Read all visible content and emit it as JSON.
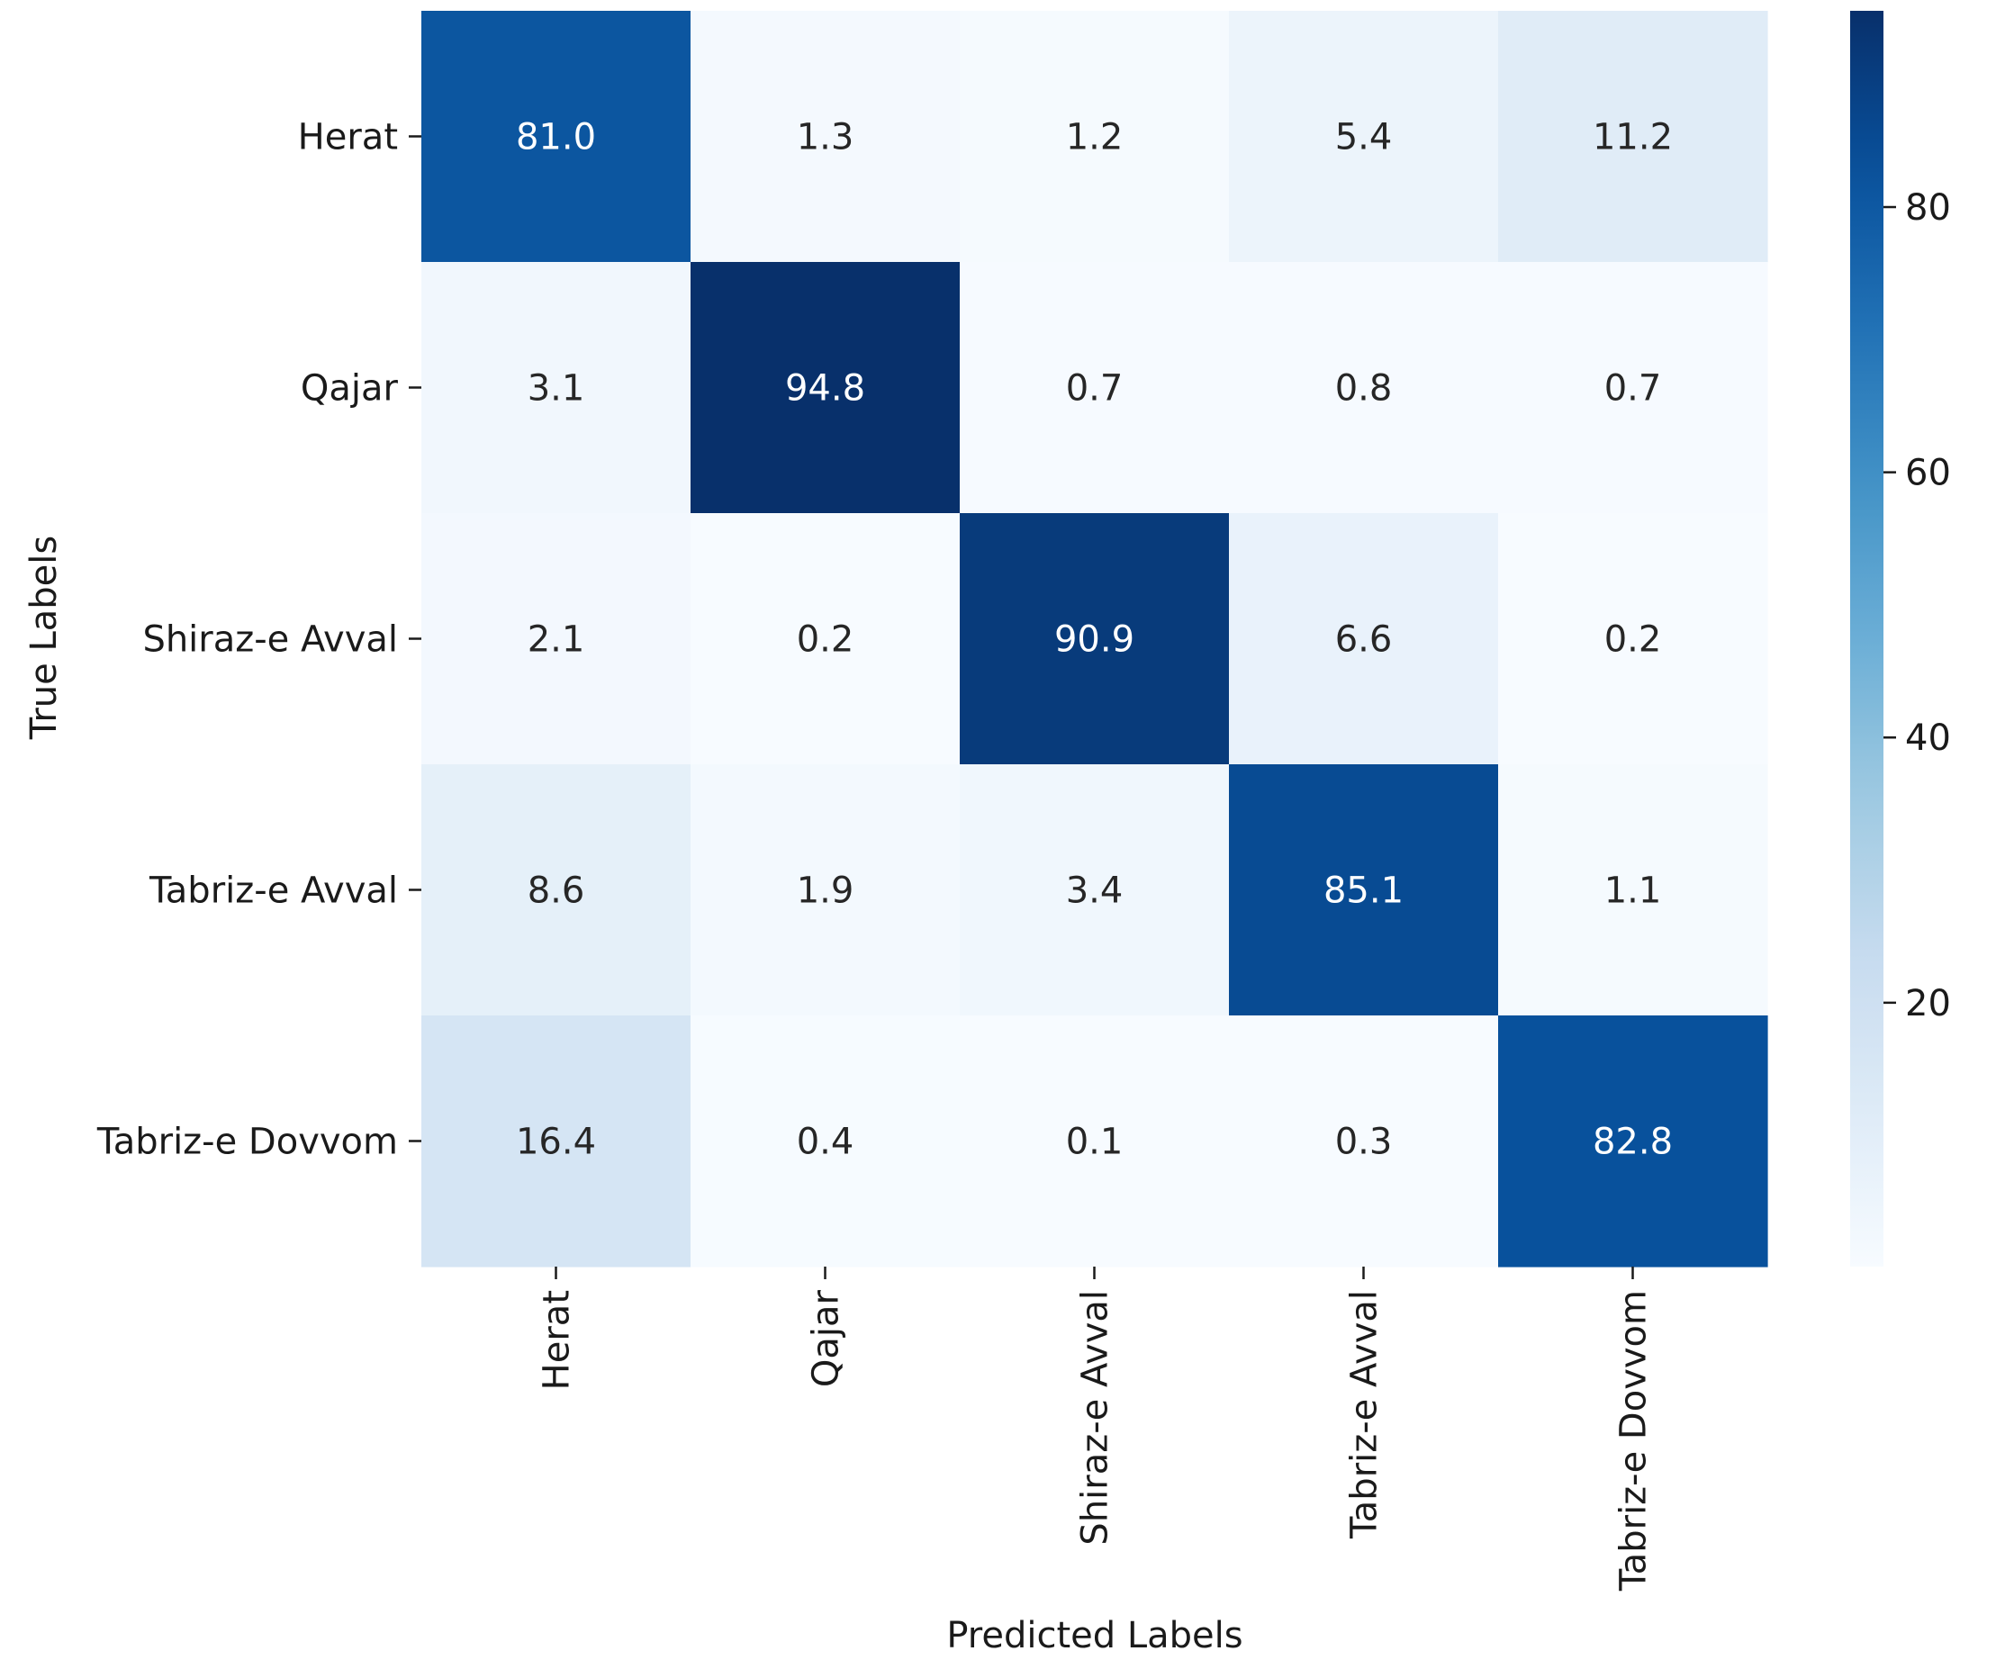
{
  "chart_data": {
    "type": "heatmap",
    "title": "",
    "xlabel": "Predicted Labels",
    "ylabel": "True Labels",
    "x_categories": [
      "Herat",
      "Qajar",
      "Shiraz-e Avval",
      "Tabriz-e Avval",
      "Tabriz-e Dovvom"
    ],
    "y_categories": [
      "Herat",
      "Qajar",
      "Shiraz-e Avval",
      "Tabriz-e Avval",
      "Tabriz-e Dovvom"
    ],
    "values": [
      [
        81.0,
        1.3,
        1.2,
        5.4,
        11.2
      ],
      [
        3.1,
        94.8,
        0.7,
        0.8,
        0.7
      ],
      [
        2.1,
        0.2,
        90.9,
        6.6,
        0.2
      ],
      [
        8.6,
        1.9,
        3.4,
        85.1,
        1.1
      ],
      [
        16.4,
        0.4,
        0.1,
        0.3,
        82.8
      ]
    ],
    "value_labels": [
      [
        "81.0",
        "1.3",
        "1.2",
        "5.4",
        "11.2"
      ],
      [
        "3.1",
        "94.8",
        "0.7",
        "0.8",
        "0.7"
      ],
      [
        "2.1",
        "0.2",
        "90.9",
        "6.6",
        "0.2"
      ],
      [
        "8.6",
        "1.9",
        "3.4",
        "85.1",
        "1.1"
      ],
      [
        "16.4",
        "0.4",
        "0.1",
        "0.3",
        "82.8"
      ]
    ],
    "colormap": "Blues",
    "color_range": [
      0.1,
      94.8
    ],
    "colorbar": {
      "ticks": [
        20,
        40,
        60,
        80
      ],
      "tick_labels": [
        "20",
        "40",
        "60",
        "80"
      ],
      "placement": "right"
    },
    "grid": false,
    "legend": "none"
  }
}
